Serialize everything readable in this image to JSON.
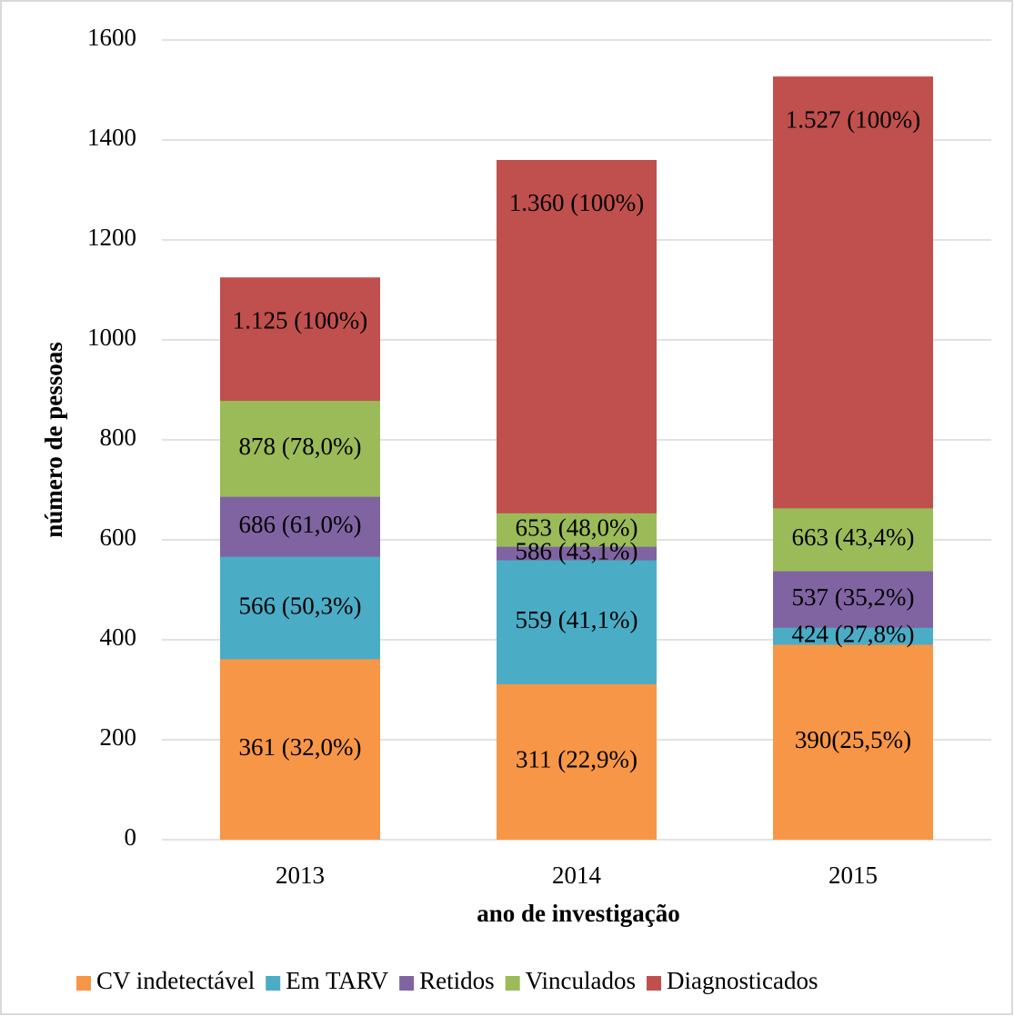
{
  "chart_data": {
    "type": "bar",
    "x_label": "ano de investigação",
    "y_label": "número de pessoas",
    "categories": [
      "2013",
      "2014",
      "2015"
    ],
    "series": [
      {
        "name": "CV indetectável",
        "color": "#f79646",
        "values": [
          361,
          311,
          390
        ],
        "value_labels": [
          "361 (32,0%)",
          "311 (22,9%)",
          "390(25,5%)"
        ]
      },
      {
        "name": "Em TARV",
        "color": "#4bacc6",
        "values": [
          566,
          559,
          424
        ],
        "value_labels": [
          "566 (50,3%)",
          "559 (41,1%)",
          "424 (27,8%)"
        ]
      },
      {
        "name": "Retidos",
        "color": "#8064a2",
        "values": [
          686,
          586,
          537
        ],
        "value_labels": [
          "686 (61,0%)",
          "586 (43,1%)",
          "537 (35,2%)"
        ]
      },
      {
        "name": "Vinculados",
        "color": "#9bbb59",
        "values": [
          878,
          653,
          663
        ],
        "value_labels": [
          "878 (78,0%)",
          "653 (48,0%)",
          "663 (43,4%)"
        ]
      },
      {
        "name": "Diagnosticados",
        "color": "#c0504d",
        "values": [
          1125,
          1360,
          1527
        ],
        "value_labels": [
          "1.125 (100%)",
          "1.360 (100%)",
          "1.527 (100%)"
        ]
      }
    ],
    "ylim": [
      0,
      1600
    ],
    "yticks": [
      0,
      200,
      400,
      600,
      800,
      1000,
      1200,
      1400,
      1600
    ],
    "grid": true,
    "legend": "bottom"
  }
}
